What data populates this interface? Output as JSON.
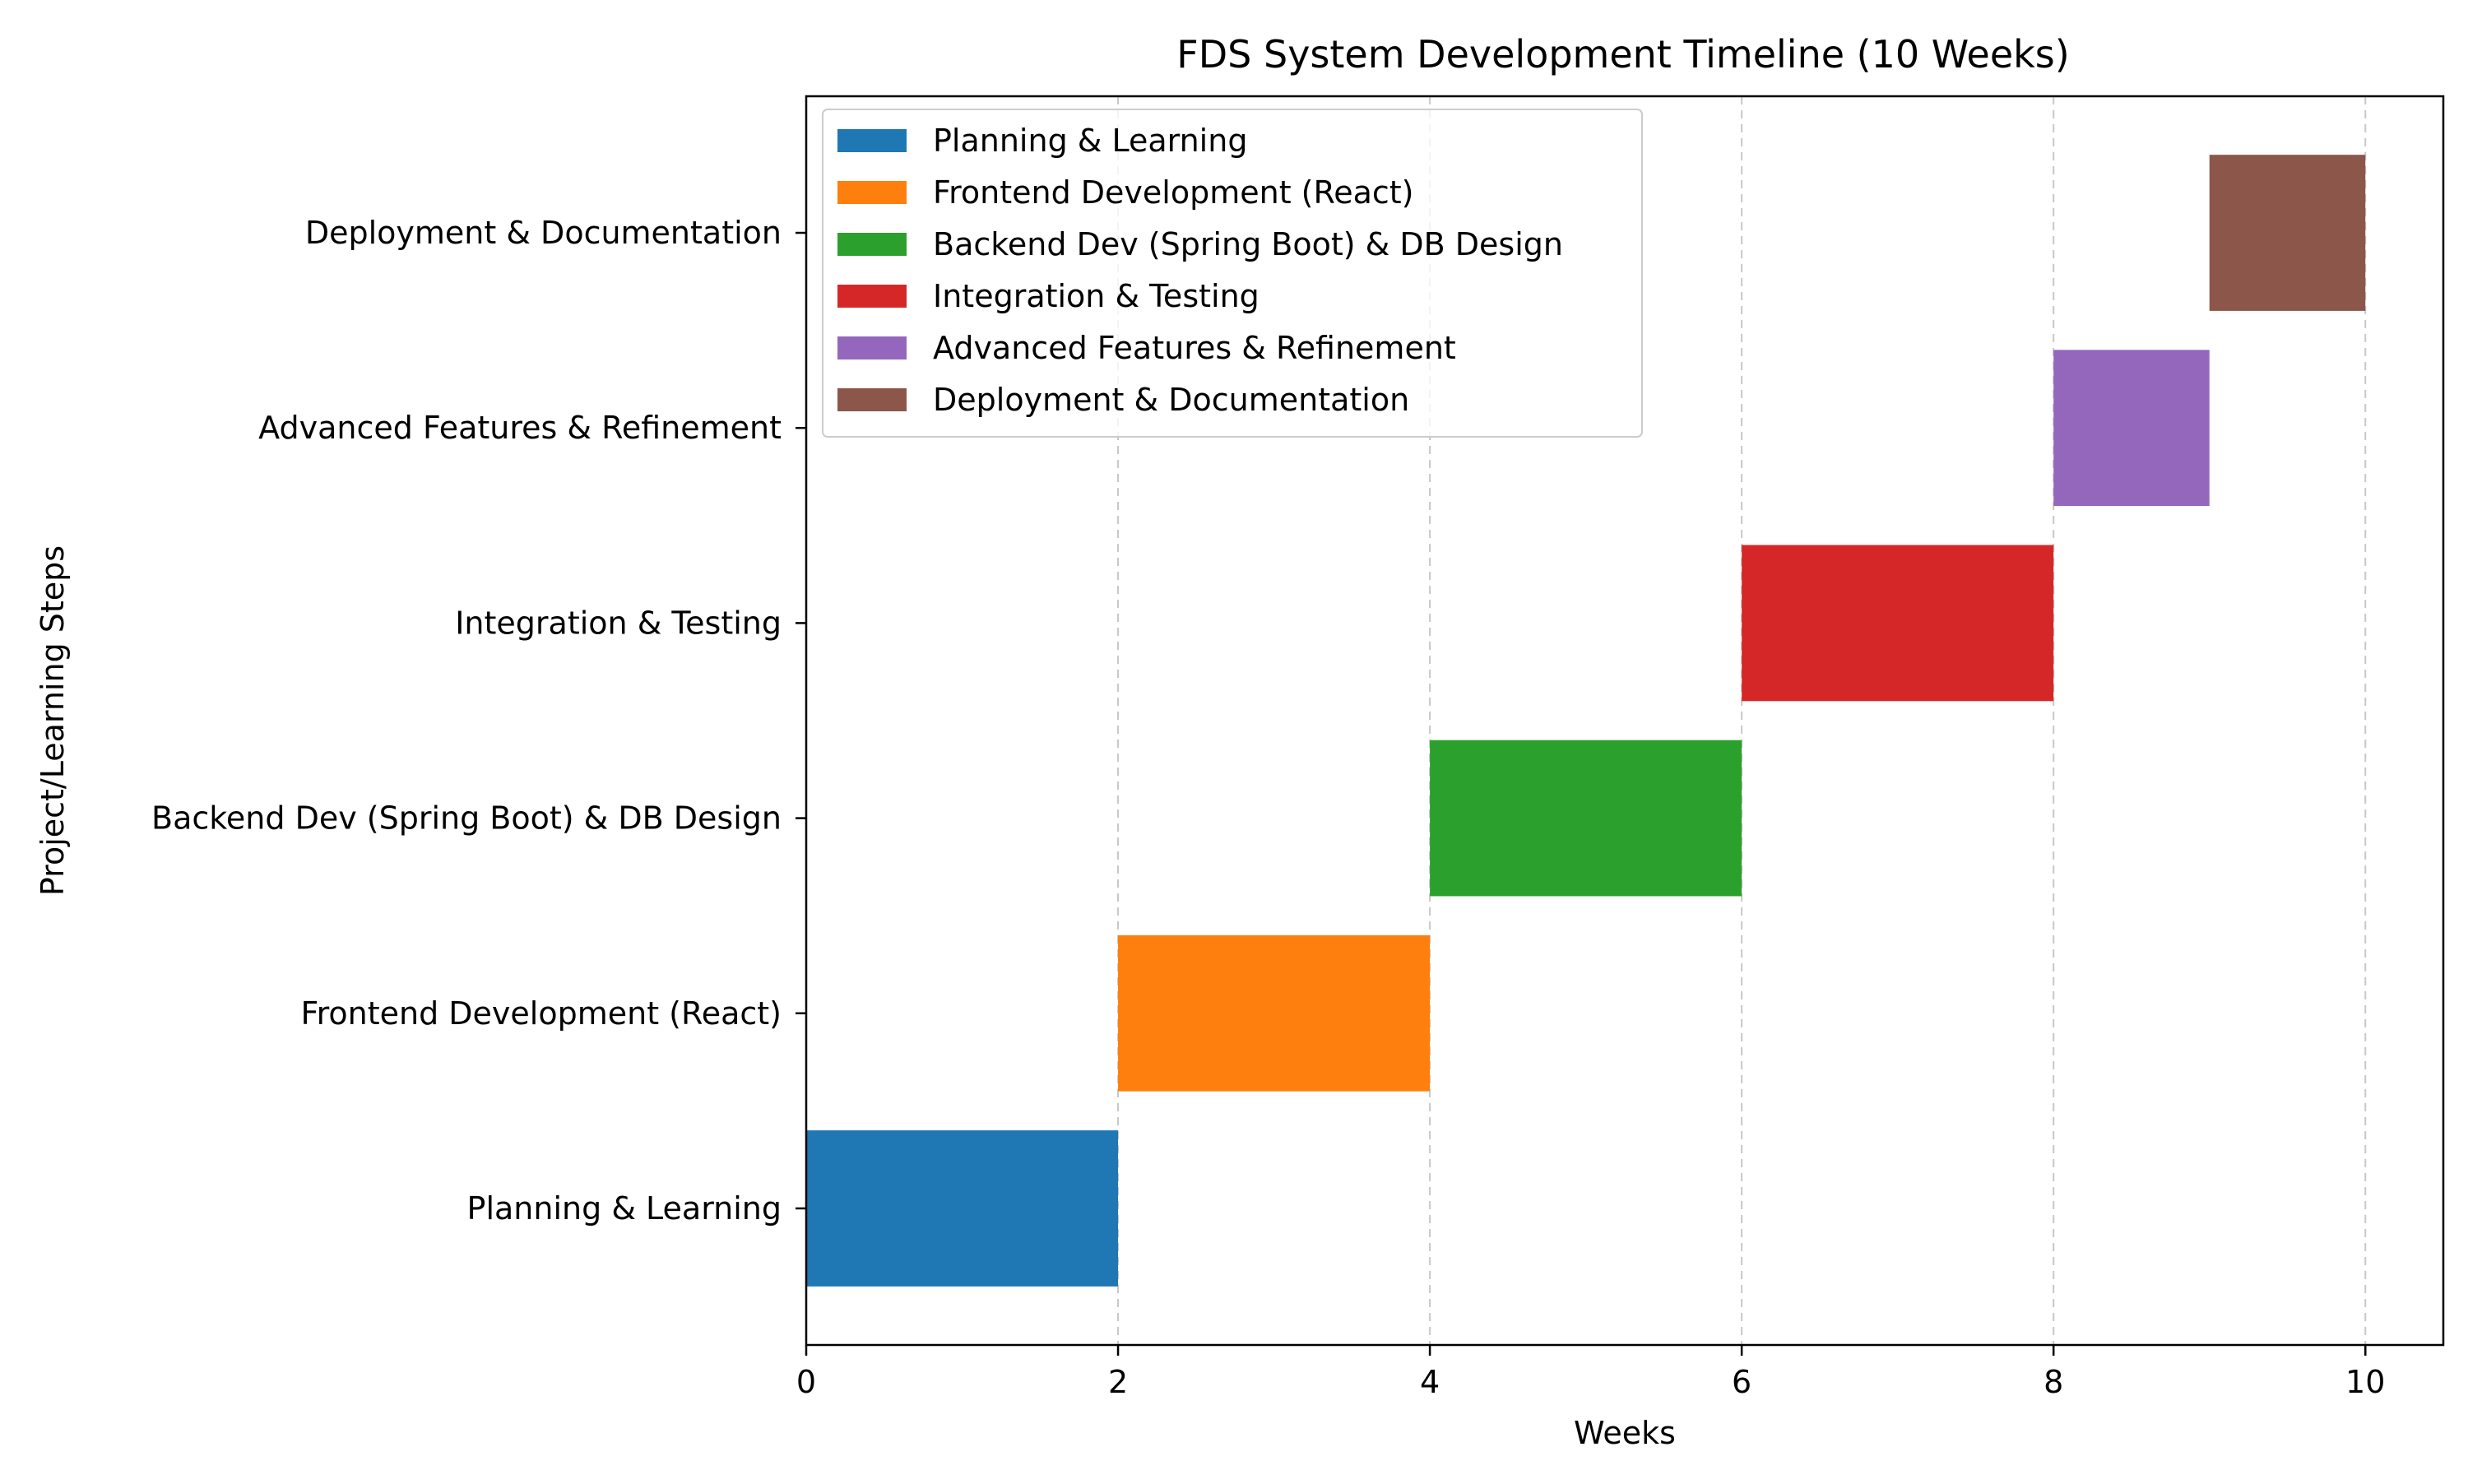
{
  "chart_data": {
    "type": "bar",
    "orientation": "horizontal",
    "title": "FDS System Development Timeline (10 Weeks)",
    "xlabel": "Weeks",
    "ylabel": "Project/Learning Steps",
    "xlim": [
      0,
      10.5
    ],
    "xticks": [
      0,
      2,
      4,
      6,
      8,
      10
    ],
    "grid": "x-axis dashed",
    "legend_position": "top-left",
    "tasks": [
      {
        "name": "Planning & Learning",
        "start": 0,
        "duration": 2,
        "color": "#1f77b4"
      },
      {
        "name": "Frontend Development (React)",
        "start": 2,
        "duration": 2,
        "color": "#ff7f0e"
      },
      {
        "name": "Backend Dev (Spring Boot) & DB Design",
        "start": 4,
        "duration": 2,
        "color": "#2ca02c"
      },
      {
        "name": "Integration & Testing",
        "start": 6,
        "duration": 2,
        "color": "#d62728"
      },
      {
        "name": "Advanced Features & Refinement",
        "start": 8,
        "duration": 1,
        "color": "#9467bd"
      },
      {
        "name": "Deployment & Documentation",
        "start": 9,
        "duration": 1,
        "color": "#8c564b"
      }
    ]
  }
}
